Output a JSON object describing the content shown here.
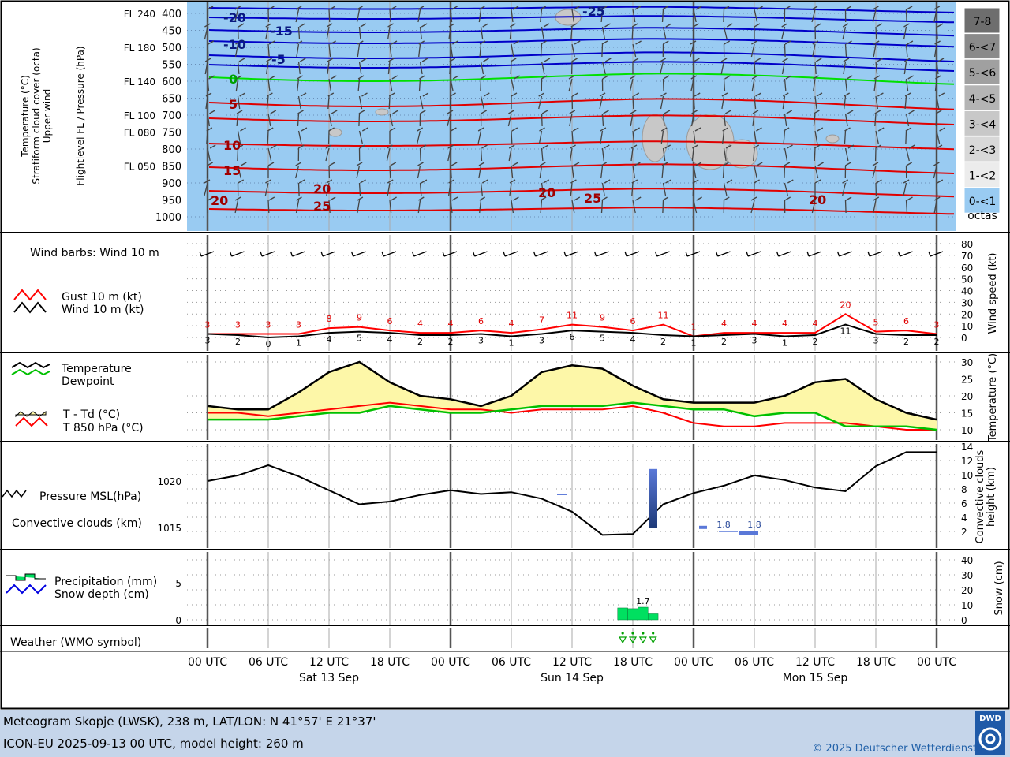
{
  "panels": {
    "upper": {
      "ylabels": [
        "Temperature (°C)",
        "Stratiform cloud cover (octa)",
        "Upper wind"
      ],
      "ylabel2": "Flightlevel FL / Pressure (hPa)",
      "pressure_levels": [
        "400",
        "450",
        "500",
        "550",
        "600",
        "650",
        "700",
        "750",
        "800",
        "850",
        "900",
        "950",
        "1000"
      ],
      "flight_levels": [
        {
          "fl": "FL 240",
          "p": "400"
        },
        {
          "fl": "FL 180",
          "p": "500"
        },
        {
          "fl": "FL 140",
          "p": "600"
        },
        {
          "fl": "FL 100",
          "p": "700"
        },
        {
          "fl": "FL 080",
          "p": "750"
        },
        {
          "fl": "FL 050",
          "p": "850"
        }
      ],
      "isotherm_labels": [
        "-20",
        "-15",
        "-10",
        "-5",
        "0",
        "5",
        "10",
        "15",
        "20",
        "25",
        "20",
        "20",
        "25",
        "20",
        "-25"
      ],
      "cloud_legend": [
        "7-8",
        "6-<7",
        "5-<6",
        "4-<5",
        "3-<4",
        "2-<3",
        "1-<2",
        "0-<1"
      ],
      "cloud_legend_unit": "octas"
    },
    "wind": {
      "title": "Wind barbs: Wind 10 m",
      "legend": [
        "Gust 10 m (kt)",
        "Wind 10 m (kt)"
      ],
      "ylabel": "Wind speed (kt)",
      "ticks": [
        "80",
        "70",
        "60",
        "50",
        "40",
        "30",
        "20",
        "10",
        "0"
      ]
    },
    "temp": {
      "legend": [
        "Temperature",
        "Dewpoint",
        "T - Td (°C)",
        "T 850 hPa (°C)"
      ],
      "ylabel": "Temperature (°C)",
      "ticks": [
        "30",
        "25",
        "20",
        "15",
        "10"
      ]
    },
    "pressure": {
      "legend": [
        "Pressure MSL(hPa)",
        "Convective clouds (km)"
      ],
      "ylabel": "Convective clouds height (km)",
      "left_ticks": [
        "1020",
        "1015"
      ],
      "right_ticks": [
        "14",
        "12",
        "10",
        "8",
        "6",
        "4",
        "2"
      ],
      "conv_labels": [
        "1.8",
        "1.8"
      ]
    },
    "precip": {
      "legend": [
        "Precipitation (mm)",
        "Snow depth (cm)"
      ],
      "ylabel": "Snow (cm)",
      "left_ticks": [
        "5",
        "0"
      ],
      "right_ticks": [
        "40",
        "30",
        "20",
        "10",
        "0"
      ],
      "max_label": "1.7"
    },
    "weather": {
      "title": "Weather (WMO symbol)"
    }
  },
  "time_axis": {
    "labels": [
      "00 UTC",
      "06 UTC",
      "12 UTC",
      "18 UTC",
      "00 UTC",
      "06 UTC",
      "12 UTC",
      "18 UTC",
      "00 UTC",
      "06 UTC",
      "12 UTC",
      "18 UTC",
      "00 UTC"
    ],
    "days": [
      "Sat 13 Sep",
      "Sun 14 Sep",
      "Mon 15 Sep"
    ]
  },
  "footer": {
    "line1": "Meteogram Skopje (LWSK), 238 m, LAT/LON: N 41°57' E 21°37'",
    "line2": "ICON-EU 2025-09-13 00 UTC, model height: 260 m",
    "copyright": "© 2025 Deutscher Wetterdienst",
    "logo": "DWD"
  },
  "colors": {
    "sky": "#99cbf2",
    "isotherm_cold": "#0000c8",
    "isotherm_zero": "#00e000",
    "isotherm_warm": "#e00000",
    "gust": "#ff0000",
    "wind": "#000000",
    "temp": "#000000",
    "dew": "#00c000",
    "spread_fill": "#fdf7a8",
    "t850": "#ff0000",
    "pressure": "#000000",
    "conv": "#2a4a9a",
    "precip": "#00e060"
  },
  "chart_data": [
    {
      "type": "line",
      "title": "Wind 10 m / Gust 10 m",
      "x": [
        0,
        3,
        6,
        9,
        12,
        15,
        18,
        21,
        24,
        27,
        30,
        33,
        36,
        39,
        42,
        45,
        48,
        51,
        54,
        57,
        60,
        63,
        66,
        69,
        72
      ],
      "series": [
        {
          "name": "Wind 10 m (kt)",
          "values": [
            3,
            2,
            0,
            1,
            4,
            5,
            4,
            2,
            2,
            3,
            1,
            3,
            6,
            5,
            4,
            2,
            1,
            2,
            3,
            1,
            2,
            11,
            3,
            2,
            2
          ]
        },
        {
          "name": "Gust 10 m (kt)",
          "values": [
            3,
            3,
            3,
            3,
            8,
            9,
            6,
            4,
            4,
            6,
            4,
            7,
            11,
            9,
            6,
            11,
            1,
            4,
            4,
            4,
            4,
            20,
            5,
            6,
            3
          ]
        }
      ],
      "ylabel": "Wind speed (kt)",
      "ylim": [
        0,
        80
      ]
    },
    {
      "type": "line",
      "title": "Temperature / Dewpoint / T 850 hPa",
      "x": [
        0,
        3,
        6,
        9,
        12,
        15,
        18,
        21,
        24,
        27,
        30,
        33,
        36,
        39,
        42,
        45,
        48,
        51,
        54,
        57,
        60,
        63,
        66,
        69,
        72
      ],
      "series": [
        {
          "name": "Temperature",
          "values": [
            17,
            16,
            16,
            21,
            27,
            30,
            24,
            20,
            19,
            17,
            20,
            27,
            29,
            28,
            23,
            19,
            18,
            18,
            18,
            20,
            24,
            25,
            19,
            15,
            13
          ]
        },
        {
          "name": "Dewpoint",
          "values": [
            13,
            13,
            13,
            14,
            15,
            15,
            17,
            16,
            15,
            15,
            16,
            17,
            17,
            17,
            18,
            17,
            16,
            16,
            14,
            15,
            15,
            11,
            11,
            11,
            10
          ]
        },
        {
          "name": "T 850 hPa (°C)",
          "values": [
            15,
            15,
            14,
            15,
            16,
            17,
            18,
            17,
            16,
            16,
            15,
            16,
            16,
            16,
            17,
            15,
            12,
            11,
            11,
            12,
            12,
            12,
            11,
            10,
            10
          ]
        }
      ],
      "ylabel": "Temperature (°C)",
      "ylim": [
        8,
        32
      ]
    },
    {
      "type": "line",
      "title": "Pressure MSL(hPa)",
      "x": [
        0,
        3,
        6,
        9,
        12,
        15,
        18,
        21,
        24,
        27,
        30,
        33,
        36,
        39,
        42,
        45,
        48,
        51,
        54,
        57,
        60,
        63,
        66,
        69,
        72
      ],
      "series": [
        {
          "name": "Pressure MSL(hPa)",
          "values": [
            1020.0,
            1020.6,
            1021.7,
            1020.5,
            1019.0,
            1017.5,
            1017.8,
            1018.5,
            1019.0,
            1018.6,
            1018.8,
            1018.1,
            1016.7,
            1014.2,
            1014.3,
            1017.5,
            1018.7,
            1019.5,
            1020.6,
            1020.1,
            1019.3,
            1018.9,
            1021.6,
            1023.1,
            1023.1
          ]
        }
      ],
      "ylabel": "Pressure (hPa)",
      "ylim": [
        1012.5,
        1024.5
      ]
    },
    {
      "type": "bar",
      "title": "Precipitation (mm)",
      "x": [
        41,
        42,
        43,
        44
      ],
      "values": [
        1.6,
        1.5,
        1.7,
        0.8
      ],
      "ylabel": "Precipitation (mm)",
      "ylim": [
        0,
        9
      ]
    }
  ]
}
